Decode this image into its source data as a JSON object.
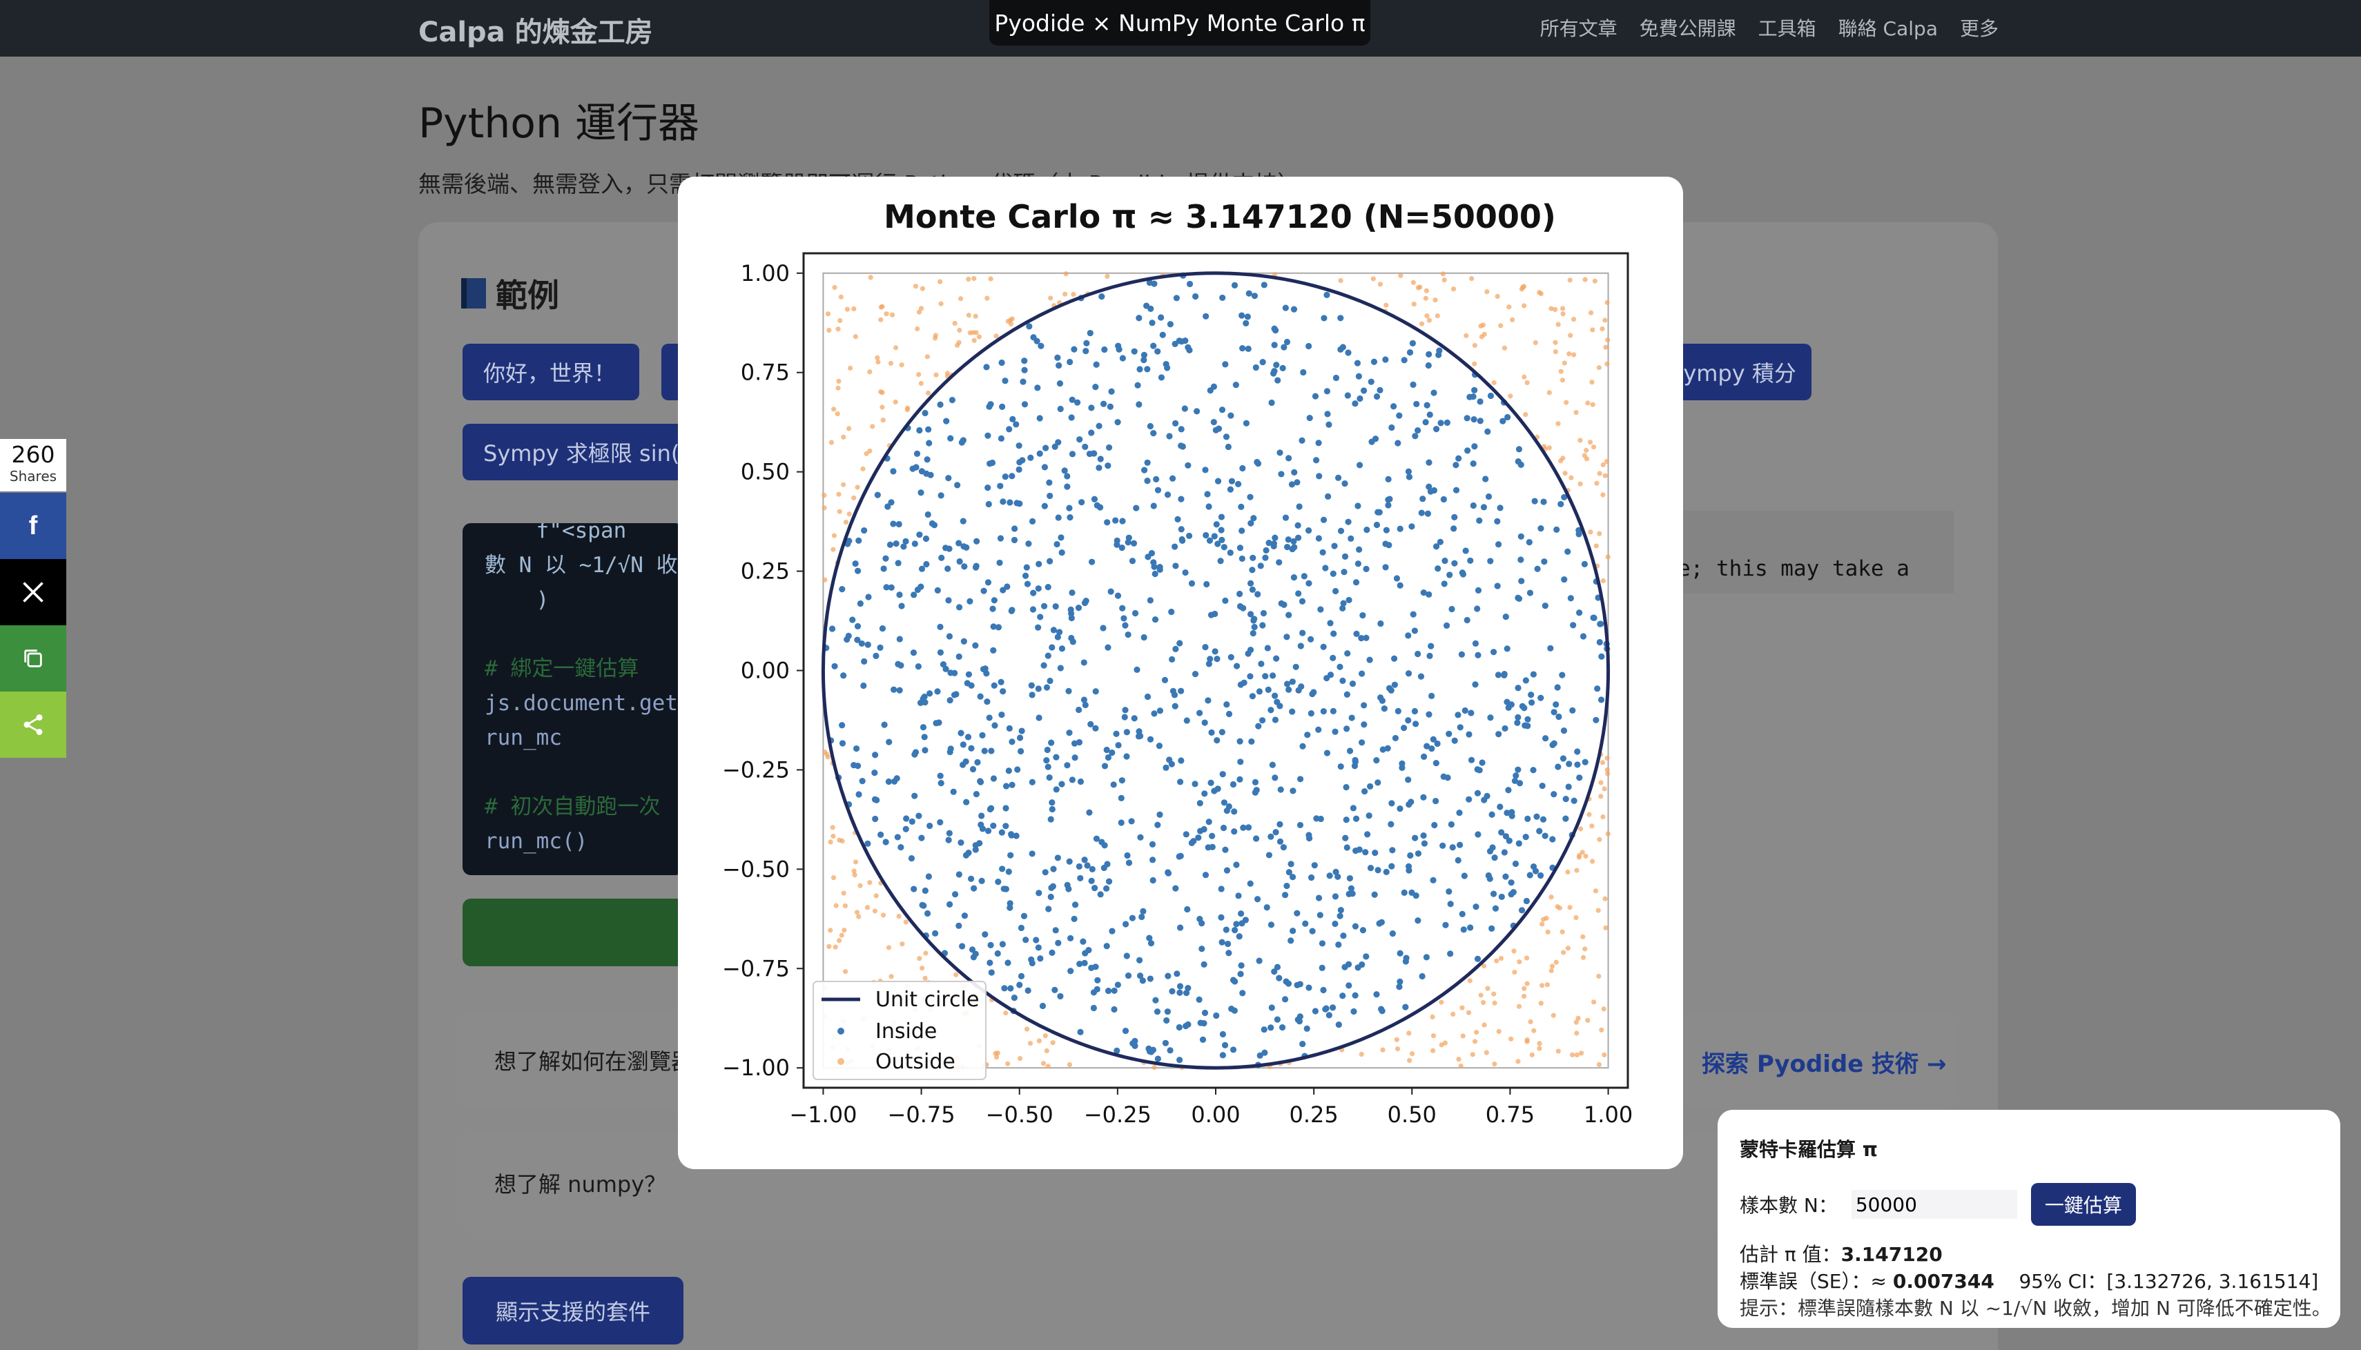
{
  "window": {
    "title": "Pyodide × NumPy Monte Carlo π"
  },
  "nav": {
    "brand": "Calpa 的煉金工房",
    "links": [
      "所有文章",
      "免費公開課",
      "工具箱",
      "聯絡 Calpa",
      "更多"
    ]
  },
  "page": {
    "title": "Python 運行器",
    "subtitle": "無需後端、無需登入，只需打開瀏覽器即可運行 Python 代碼（由 Pyodide 提供支持）"
  },
  "examples": {
    "heading": "範例",
    "buttons": [
      "你好，世界！",
      "",
      "Sympy 積分",
      "Sympy 求極限 sin(x"
    ]
  },
  "code": {
    "lines": [
      "    f\"<span",
      "數 N 以 ~1/√N 收",
      "    )",
      "",
      "# 綁定一鍵估算",
      "js.document.get",
      "run_mc",
      "",
      "# 初次自動跑一次",
      "run_mc()"
    ],
    "right_text": "e; this may take a"
  },
  "info": {
    "box1_text": "想了解如何在瀏覽器",
    "box1_link": "探索 Pyodide 技術 →",
    "box2_text": "想了解 numpy？"
  },
  "packages_button": "顯示支援的套件",
  "share": {
    "count": "260",
    "label": "Shares",
    "icons": [
      "facebook-icon",
      "x-icon",
      "copy-icon",
      "share-icon"
    ]
  },
  "mc_panel": {
    "title": "蒙特卡羅估算 π",
    "n_label": "樣本數 N：",
    "n_value": "50000",
    "run_button": "一鍵估算",
    "estimate_label": "估計 π 值：",
    "estimate_value": "3.147120",
    "se_label": "標準誤（SE）：≈",
    "se_value": "0.007344",
    "ci_text": "95% CI：[3.132726, 3.161514]",
    "hint": "提示：標準誤隨樣本數 N 以 ~1/√N 收斂，增加 N 可降低不確定性。"
  },
  "chart_data": {
    "type": "scatter",
    "title": "Monte Carlo π ≈ 3.147120  (N=50000)",
    "xlim": [
      -1.05,
      1.05
    ],
    "ylim": [
      -1.05,
      1.05
    ],
    "xticks": [
      "−1.00",
      "−0.75",
      "−0.50",
      "−0.25",
      "0.00",
      "0.25",
      "0.50",
      "0.75",
      "1.00"
    ],
    "yticks": [
      "1.00",
      "0.75",
      "0.50",
      "0.25",
      "0.00",
      "−0.25",
      "−0.50",
      "−0.75",
      "−1.00"
    ],
    "legend_position": "bottom-left",
    "series": [
      {
        "name": "Unit circle",
        "kind": "line",
        "color": "#1f2a5c"
      },
      {
        "name": "Inside",
        "kind": "points",
        "color": "#3a78b5"
      },
      {
        "name": "Outside",
        "kind": "points",
        "color": "#f2a25c"
      }
    ]
  }
}
